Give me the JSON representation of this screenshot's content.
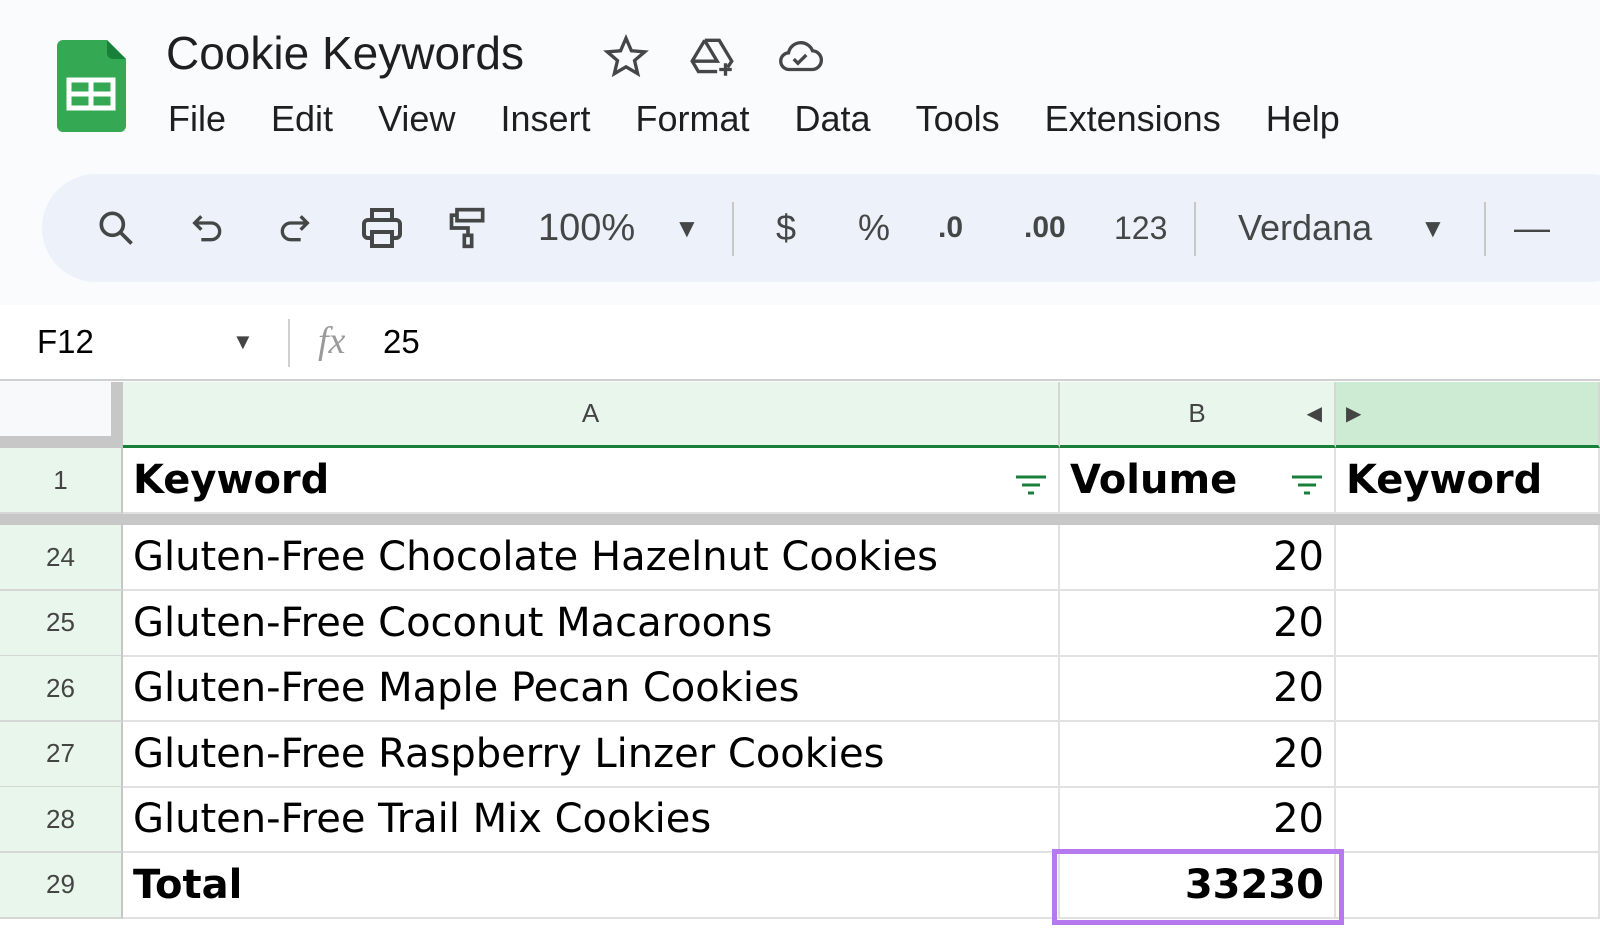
{
  "app": {
    "title": "Cookie Keywords"
  },
  "menu": [
    "File",
    "Edit",
    "View",
    "Insert",
    "Format",
    "Data",
    "Tools",
    "Extensions",
    "Help"
  ],
  "toolbar": {
    "zoom": "100%",
    "currency": "$",
    "percent": "%",
    "dec_decrease": ".0",
    "dec_increase": ".00",
    "number_format": "123",
    "font": "Verdana"
  },
  "formula_bar": {
    "cell_ref": "F12",
    "fx": "fx",
    "value": "25"
  },
  "columns": [
    "A",
    "B"
  ],
  "header_row": {
    "row": "1",
    "a": "Keyword",
    "b": "Volume",
    "c": "Keyword"
  },
  "rows": [
    {
      "row": "24",
      "a": "Gluten-Free Chocolate Hazelnut Cookies",
      "b": "20"
    },
    {
      "row": "25",
      "a": "Gluten-Free Coconut Macaroons",
      "b": "20"
    },
    {
      "row": "26",
      "a": "Gluten-Free Maple Pecan Cookies",
      "b": "20"
    },
    {
      "row": "27",
      "a": "Gluten-Free Raspberry Linzer Cookies",
      "b": "20"
    },
    {
      "row": "28",
      "a": "Gluten-Free Trail Mix Cookies",
      "b": "20"
    }
  ],
  "total_row": {
    "row": "29",
    "a": "Total",
    "b": "33230"
  },
  "colors": {
    "sheets_green": "#34a853",
    "highlight": "#b57bee",
    "header_bg": "#e9f6ec",
    "filter": "#188038"
  }
}
